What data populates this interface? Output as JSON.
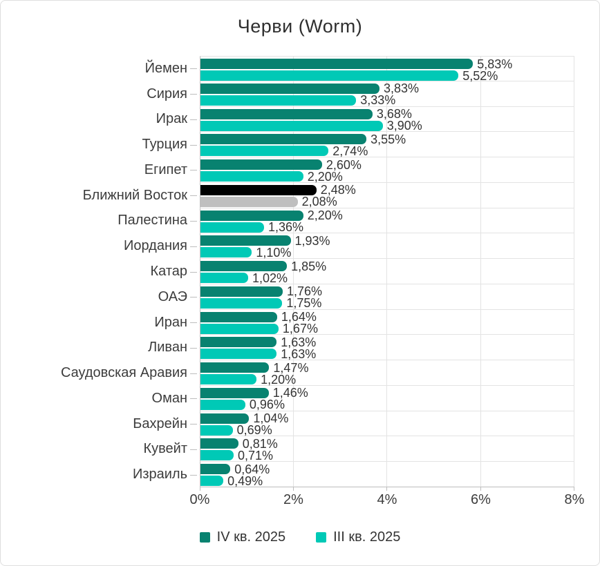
{
  "chart_data": {
    "type": "bar",
    "orientation": "horizontal",
    "title": "Черви (Worm)",
    "xlabel": "",
    "ylabel": "",
    "xlim": [
      0,
      8
    ],
    "x_tick_labels": [
      "0%",
      "2%",
      "4%",
      "6%",
      "8%"
    ],
    "x_tick_values": [
      0,
      2,
      4,
      6,
      8
    ],
    "grid": "vertical-gridlines-on",
    "legend_position": "bottom-center",
    "value_label_format": "two-decimals-comma-percent",
    "categories": [
      "Йемен",
      "Сирия",
      "Ирак",
      "Турция",
      "Египет",
      "Ближний Восток",
      "Палестина",
      "Иордания",
      "Катар",
      "ОАЭ",
      "Иран",
      "Ливан",
      "Саудовская Аравия",
      "Оман",
      "Бахрейн",
      "Кувейт",
      "Израиль"
    ],
    "series": [
      {
        "name": "IV кв. 2025",
        "color": "#088270",
        "values": [
          5.83,
          3.83,
          3.68,
          3.55,
          2.6,
          2.48,
          2.2,
          1.93,
          1.85,
          1.76,
          1.64,
          1.63,
          1.47,
          1.46,
          1.04,
          0.81,
          0.64
        ]
      },
      {
        "name": "III кв. 2025",
        "color": "#00C9B6",
        "values": [
          5.52,
          3.33,
          3.9,
          2.74,
          2.2,
          2.08,
          1.36,
          1.1,
          1.02,
          1.75,
          1.67,
          1.63,
          1.2,
          0.96,
          0.69,
          0.71,
          0.49
        ]
      }
    ],
    "highlight_category": "Ближний Восток",
    "highlight_colors": [
      "#000000",
      "#BFBFBF"
    ]
  },
  "colors": {
    "title_text": "#2F2F2F",
    "label_text": "#3C3C3C",
    "value_text": "#333333",
    "gridline": "#E3E3E3",
    "axis_line": "#BDBDBD",
    "card_border": "#DEDEDE",
    "background": "#FFFFFF"
  }
}
